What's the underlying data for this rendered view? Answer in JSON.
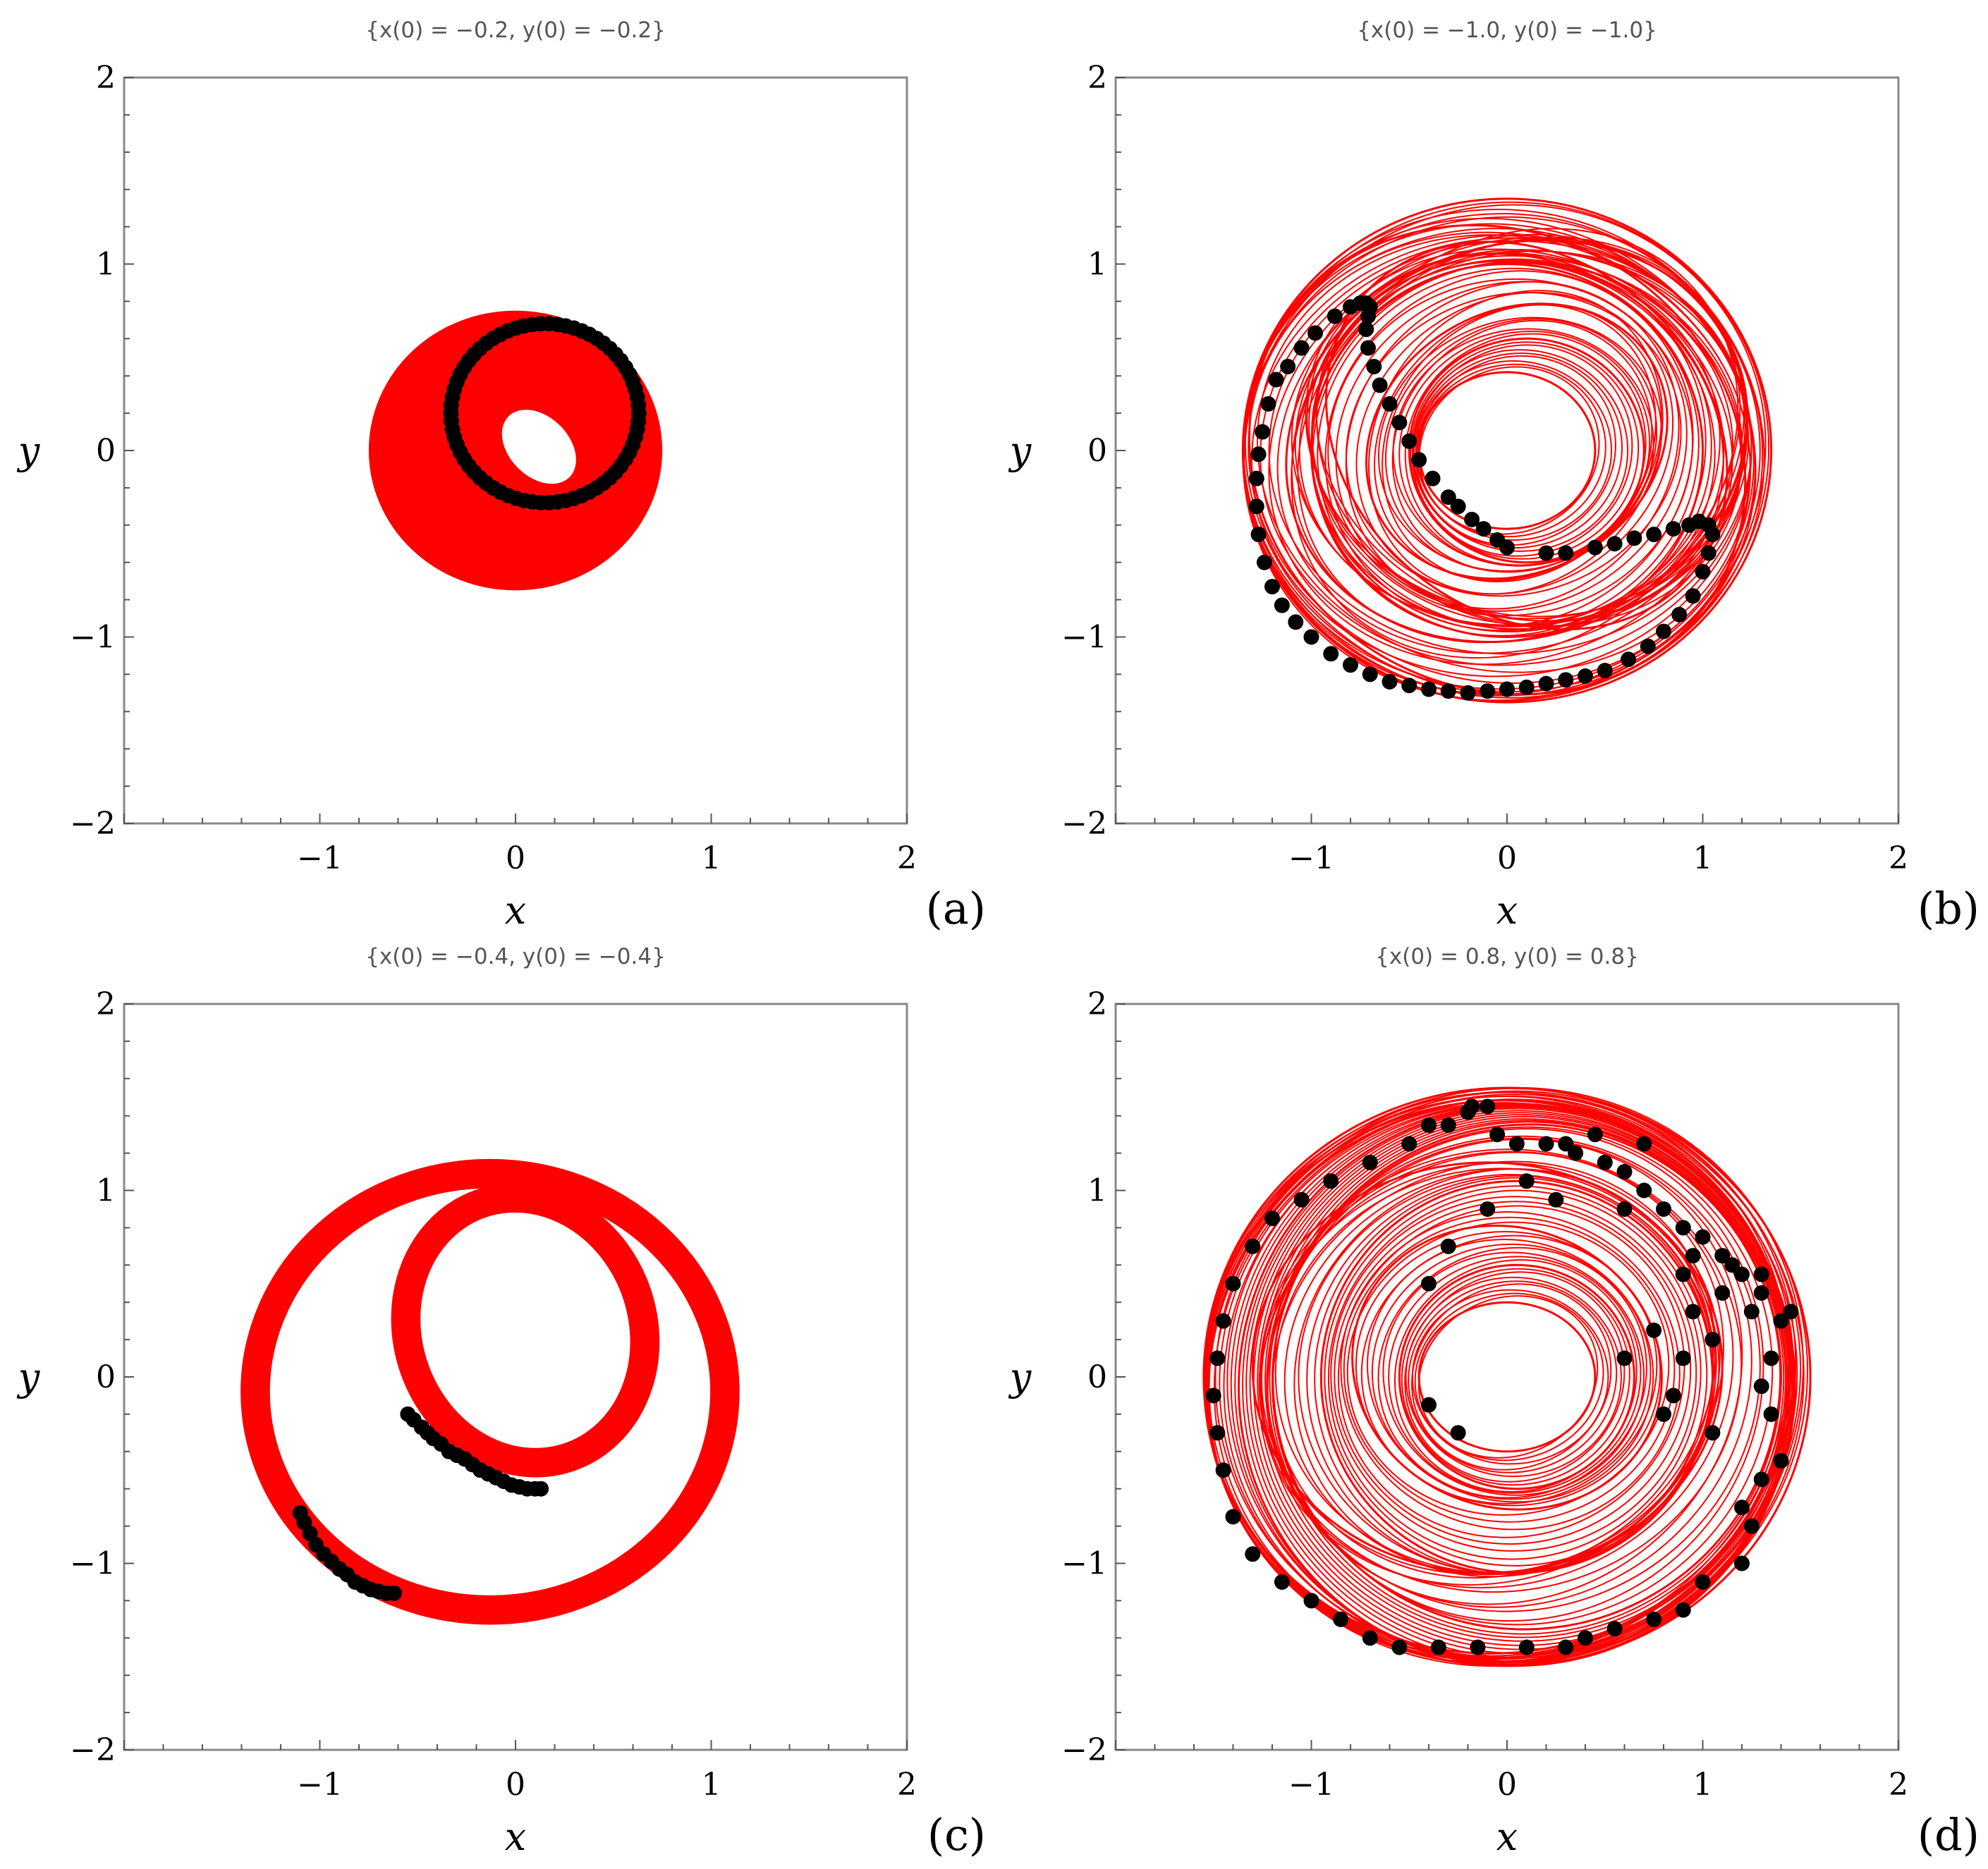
{
  "chart_data": [
    {
      "type": "scatter",
      "panel_label": "(a)",
      "title": "{x(0) = −0.2, y(0) = −0.2}",
      "xlabel": "x",
      "ylabel": "y",
      "xlim": [
        -2,
        2
      ],
      "ylim": [
        -2,
        2
      ],
      "xticks": [
        "−1",
        "0",
        "1",
        "2"
      ],
      "yticks": [
        "−2",
        "−1",
        "0",
        "1",
        "2"
      ],
      "grid": false,
      "legend": "none",
      "colors": {
        "orbit": "#ff0000",
        "points": "#000000"
      },
      "orbit_style": "filled-band",
      "orbit_samples": [
        {
          "cx": 0.0,
          "cy": 0.0,
          "rx": 0.75,
          "ry": 0.75,
          "rot": 0
        },
        {
          "cx": 0.02,
          "cy": -0.02,
          "rx": 0.7,
          "ry": 0.62,
          "rot": -30
        },
        {
          "cx": 0.1,
          "cy": 0.05,
          "rx": 0.62,
          "ry": 0.48,
          "rot": -35
        },
        {
          "cx": 0.15,
          "cy": 0.12,
          "rx": 0.52,
          "ry": 0.4,
          "rot": -30
        },
        {
          "cx": 0.05,
          "cy": -0.05,
          "rx": 0.55,
          "ry": 0.55,
          "rot": 0
        },
        {
          "cx": 0.2,
          "cy": 0.18,
          "rx": 0.4,
          "ry": 0.4,
          "rot": 0
        }
      ],
      "orbit_hole": {
        "cx": 0.12,
        "cy": 0.02,
        "rx": 0.22,
        "ry": 0.16,
        "rot": -45
      },
      "poincare_points": {
        "kind": "ring",
        "cx": 0.15,
        "cy": 0.2,
        "rx": 0.48,
        "ry": 0.48,
        "rot": 0,
        "n": 70,
        "start": 0,
        "end": 360
      }
    },
    {
      "type": "scatter",
      "panel_label": "(b)",
      "title": "{x(0) = −1.0, y(0) = −1.0}",
      "xlabel": "x",
      "ylabel": "y",
      "xlim": [
        -2,
        2
      ],
      "ylim": [
        -2,
        2
      ],
      "xticks": [
        "−1",
        "0",
        "1",
        "2"
      ],
      "yticks": [
        "−2",
        "−1",
        "0",
        "1",
        "2"
      ],
      "grid": false,
      "legend": "none",
      "colors": {
        "orbit": "#ff0000",
        "points": "#000000"
      },
      "orbit_style": "many-loops",
      "orbit_samples": [
        {
          "cx": 0.0,
          "cy": 0.0,
          "rx": 1.35,
          "ry": 1.35,
          "rot": 0
        },
        {
          "cx": -0.05,
          "cy": -0.05,
          "rx": 1.3,
          "ry": 1.22,
          "rot": -30
        },
        {
          "cx": 0.05,
          "cy": 0.05,
          "rx": 1.2,
          "ry": 1.05,
          "rot": 20
        },
        {
          "cx": 0.1,
          "cy": 0.08,
          "rx": 1.1,
          "ry": 0.95,
          "rot": -40
        },
        {
          "cx": 0.0,
          "cy": 0.0,
          "rx": 1.0,
          "ry": 1.0,
          "rot": 0
        },
        {
          "cx": 0.05,
          "cy": 0.05,
          "rx": 0.8,
          "ry": 0.7,
          "rot": 30
        },
        {
          "cx": 0.1,
          "cy": 0.0,
          "rx": 0.6,
          "ry": 0.6,
          "rot": 0
        },
        {
          "cx": 0.0,
          "cy": 0.0,
          "rx": 0.45,
          "ry": 0.42,
          "rot": 0
        }
      ],
      "orbit_hole": {
        "cx": 0.0,
        "cy": 0.0,
        "rx": 0.43,
        "ry": 0.4,
        "rot": 0
      },
      "poincare_points": {
        "kind": "list",
        "points": [
          [
            -0.75,
            0.79
          ],
          [
            -0.72,
            0.79
          ],
          [
            -0.7,
            0.77
          ],
          [
            -0.71,
            0.72
          ],
          [
            -0.72,
            0.65
          ],
          [
            -0.71,
            0.55
          ],
          [
            -0.68,
            0.45
          ],
          [
            -0.65,
            0.35
          ],
          [
            -0.6,
            0.25
          ],
          [
            -0.55,
            0.15
          ],
          [
            -0.5,
            0.05
          ],
          [
            -0.45,
            -0.05
          ],
          [
            -0.38,
            -0.15
          ],
          [
            -0.3,
            -0.25
          ],
          [
            -0.25,
            -0.3
          ],
          [
            -0.18,
            -0.37
          ],
          [
            -0.12,
            -0.42
          ],
          [
            -0.05,
            -0.48
          ],
          [
            0.0,
            -0.52
          ],
          [
            0.2,
            -0.55
          ],
          [
            0.3,
            -0.55
          ],
          [
            0.45,
            -0.52
          ],
          [
            0.55,
            -0.5
          ],
          [
            0.65,
            -0.47
          ],
          [
            0.75,
            -0.45
          ],
          [
            0.85,
            -0.42
          ],
          [
            0.93,
            -0.4
          ],
          [
            0.98,
            -0.38
          ],
          [
            1.03,
            -0.4
          ],
          [
            1.05,
            -0.45
          ],
          [
            1.03,
            -0.55
          ],
          [
            1.0,
            -0.65
          ],
          [
            0.95,
            -0.78
          ],
          [
            0.88,
            -0.88
          ],
          [
            0.8,
            -0.97
          ],
          [
            0.72,
            -1.05
          ],
          [
            0.62,
            -1.12
          ],
          [
            0.5,
            -1.18
          ],
          [
            0.4,
            -1.21
          ],
          [
            0.3,
            -1.23
          ],
          [
            0.2,
            -1.25
          ],
          [
            0.1,
            -1.27
          ],
          [
            0.0,
            -1.28
          ],
          [
            -0.1,
            -1.29
          ],
          [
            -0.2,
            -1.3
          ],
          [
            -0.3,
            -1.29
          ],
          [
            -0.4,
            -1.28
          ],
          [
            -0.5,
            -1.26
          ],
          [
            -0.6,
            -1.24
          ],
          [
            -0.7,
            -1.2
          ],
          [
            -0.8,
            -1.15
          ],
          [
            -0.9,
            -1.09
          ],
          [
            -1.0,
            -1.0
          ],
          [
            -1.08,
            -0.92
          ],
          [
            -1.15,
            -0.83
          ],
          [
            -1.2,
            -0.73
          ],
          [
            -1.24,
            -0.6
          ],
          [
            -1.27,
            -0.45
          ],
          [
            -1.28,
            -0.3
          ],
          [
            -1.28,
            -0.15
          ],
          [
            -1.27,
            -0.02
          ],
          [
            -1.25,
            0.1
          ],
          [
            -1.22,
            0.25
          ],
          [
            -1.18,
            0.38
          ],
          [
            -1.12,
            0.45
          ],
          [
            -1.05,
            0.55
          ],
          [
            -0.98,
            0.63
          ],
          [
            -0.88,
            0.72
          ],
          [
            -0.8,
            0.77
          ]
        ]
      }
    },
    {
      "type": "scatter",
      "panel_label": "(c)",
      "title": "{x(0) = −0.4, y(0) = −0.4}",
      "xlabel": "x",
      "ylabel": "y",
      "xlim": [
        -2,
        2
      ],
      "ylim": [
        -2,
        2
      ],
      "xticks": [
        "−1",
        "0",
        "1",
        "2"
      ],
      "yticks": [
        "−2",
        "−1",
        "0",
        "1",
        "2"
      ],
      "grid": false,
      "legend": "none",
      "colors": {
        "orbit": "#ff0000",
        "points": "#000000"
      },
      "orbit_style": "double-band",
      "orbit_bands": [
        {
          "cx": -0.13,
          "cy": -0.08,
          "rx": 1.2,
          "ry": 1.17,
          "rot": 0,
          "width": 0.15
        },
        {
          "cx": 0.05,
          "cy": 0.25,
          "rx": 0.6,
          "ry": 0.72,
          "rot": 20,
          "width": 0.15
        }
      ],
      "poincare_points": {
        "kind": "list",
        "points": [
          [
            -0.55,
            -0.2
          ],
          [
            -0.52,
            -0.23
          ],
          [
            -0.48,
            -0.27
          ],
          [
            -0.45,
            -0.3
          ],
          [
            -0.42,
            -0.33
          ],
          [
            -0.38,
            -0.36
          ],
          [
            -0.34,
            -0.4
          ],
          [
            -0.3,
            -0.42
          ],
          [
            -0.26,
            -0.44
          ],
          [
            -0.22,
            -0.47
          ],
          [
            -0.18,
            -0.5
          ],
          [
            -0.14,
            -0.52
          ],
          [
            -0.1,
            -0.54
          ],
          [
            -0.06,
            -0.56
          ],
          [
            -0.02,
            -0.58
          ],
          [
            0.02,
            -0.59
          ],
          [
            0.06,
            -0.6
          ],
          [
            0.1,
            -0.6
          ],
          [
            0.13,
            -0.6
          ],
          [
            -1.1,
            -0.73
          ],
          [
            -1.08,
            -0.78
          ],
          [
            -1.05,
            -0.84
          ],
          [
            -1.02,
            -0.9
          ],
          [
            -0.98,
            -0.95
          ],
          [
            -0.94,
            -0.99
          ],
          [
            -0.9,
            -1.03
          ],
          [
            -0.86,
            -1.06
          ],
          [
            -0.82,
            -1.1
          ],
          [
            -0.78,
            -1.12
          ],
          [
            -0.74,
            -1.14
          ],
          [
            -0.7,
            -1.15
          ],
          [
            -0.66,
            -1.16
          ],
          [
            -0.62,
            -1.16
          ]
        ]
      }
    },
    {
      "type": "scatter",
      "panel_label": "(d)",
      "title": "{x(0) = 0.8, y(0) = 0.8}",
      "xlabel": "x",
      "ylabel": "y",
      "xlim": [
        -2,
        2
      ],
      "ylim": [
        -2,
        2
      ],
      "xticks": [
        "−1",
        "0",
        "1",
        "2"
      ],
      "yticks": [
        "−2",
        "−1",
        "0",
        "1",
        "2"
      ],
      "grid": false,
      "legend": "none",
      "colors": {
        "orbit": "#ff0000",
        "points": "#000000"
      },
      "orbit_style": "many-loops",
      "orbit_samples": [
        {
          "cx": 0.0,
          "cy": 0.0,
          "rx": 1.55,
          "ry": 1.55,
          "rot": 0
        },
        {
          "cx": -0.05,
          "cy": 0.0,
          "rx": 1.5,
          "ry": 1.48,
          "rot": 10
        },
        {
          "cx": 0.05,
          "cy": -0.05,
          "rx": 1.42,
          "ry": 1.5,
          "rot": -20
        },
        {
          "cx": 0.1,
          "cy": 0.0,
          "rx": 1.3,
          "ry": 1.35,
          "rot": 30
        },
        {
          "cx": -0.1,
          "cy": 0.05,
          "rx": 1.2,
          "ry": 1.1,
          "rot": 0
        },
        {
          "cx": 0.05,
          "cy": 0.0,
          "rx": 1.0,
          "ry": 1.05,
          "rot": 15
        },
        {
          "cx": 0.0,
          "cy": 0.05,
          "rx": 0.8,
          "ry": 0.75,
          "rot": -20
        },
        {
          "cx": 0.05,
          "cy": 0.0,
          "rx": 0.6,
          "ry": 0.6,
          "rot": 0
        },
        {
          "cx": 0.0,
          "cy": 0.0,
          "rx": 0.45,
          "ry": 0.4,
          "rot": 0
        }
      ],
      "orbit_hole": {
        "cx": 0.05,
        "cy": 0.0,
        "rx": 0.3,
        "ry": 0.28,
        "rot": 0
      },
      "poincare_points": {
        "kind": "list",
        "points": [
          [
            -0.2,
            1.42
          ],
          [
            -0.18,
            1.45
          ],
          [
            -0.3,
            1.35
          ],
          [
            -0.05,
            1.3
          ],
          [
            0.05,
            1.25
          ],
          [
            0.2,
            1.25
          ],
          [
            0.3,
            1.25
          ],
          [
            0.35,
            1.2
          ],
          [
            0.5,
            1.15
          ],
          [
            0.6,
            1.1
          ],
          [
            0.7,
            1.0
          ],
          [
            0.8,
            0.9
          ],
          [
            0.9,
            0.8
          ],
          [
            1.0,
            0.75
          ],
          [
            1.1,
            0.65
          ],
          [
            1.2,
            0.55
          ],
          [
            1.3,
            0.45
          ],
          [
            1.4,
            0.3
          ],
          [
            1.35,
            0.1
          ],
          [
            1.3,
            -0.05
          ],
          [
            1.35,
            -0.2
          ],
          [
            1.4,
            -0.45
          ],
          [
            1.3,
            -0.55
          ],
          [
            1.25,
            -0.8
          ],
          [
            1.2,
            -1.0
          ],
          [
            1.0,
            -1.1
          ],
          [
            0.9,
            -1.25
          ],
          [
            0.75,
            -1.3
          ],
          [
            0.55,
            -1.35
          ],
          [
            0.4,
            -1.4
          ],
          [
            0.3,
            -1.45
          ],
          [
            0.1,
            -1.45
          ],
          [
            -0.15,
            -1.45
          ],
          [
            -0.35,
            -1.45
          ],
          [
            -0.55,
            -1.45
          ],
          [
            -0.7,
            -1.4
          ],
          [
            -0.85,
            -1.3
          ],
          [
            -1.0,
            -1.2
          ],
          [
            -1.15,
            -1.1
          ],
          [
            -1.3,
            -0.95
          ],
          [
            -1.4,
            -0.75
          ],
          [
            -1.45,
            -0.5
          ],
          [
            -1.48,
            -0.3
          ],
          [
            -1.5,
            -0.1
          ],
          [
            -1.48,
            0.1
          ],
          [
            -1.45,
            0.3
          ],
          [
            -1.4,
            0.5
          ],
          [
            -1.3,
            0.7
          ],
          [
            -1.2,
            0.85
          ],
          [
            -1.05,
            0.95
          ],
          [
            -0.9,
            1.05
          ],
          [
            -0.7,
            1.15
          ],
          [
            -0.5,
            1.25
          ],
          [
            -0.4,
            1.35
          ],
          [
            -0.1,
            1.45
          ],
          [
            0.1,
            1.05
          ],
          [
            0.25,
            0.95
          ],
          [
            -0.1,
            0.9
          ],
          [
            -0.4,
            0.5
          ],
          [
            -0.3,
            0.7
          ],
          [
            -0.25,
            -0.3
          ],
          [
            -0.4,
            -0.15
          ],
          [
            0.9,
            0.55
          ],
          [
            0.95,
            0.35
          ],
          [
            1.05,
            0.2
          ],
          [
            0.75,
            0.25
          ],
          [
            0.9,
            0.1
          ],
          [
            1.1,
            0.45
          ],
          [
            1.25,
            0.35
          ],
          [
            0.8,
            -0.2
          ],
          [
            1.15,
            0.6
          ],
          [
            0.6,
            0.1
          ],
          [
            0.85,
            -0.1
          ],
          [
            1.05,
            -0.3
          ],
          [
            1.2,
            -0.7
          ],
          [
            0.95,
            0.65
          ],
          [
            0.45,
            1.3
          ],
          [
            0.7,
            1.25
          ],
          [
            0.6,
            0.9
          ],
          [
            1.3,
            0.55
          ],
          [
            1.45,
            0.35
          ]
        ]
      }
    }
  ]
}
